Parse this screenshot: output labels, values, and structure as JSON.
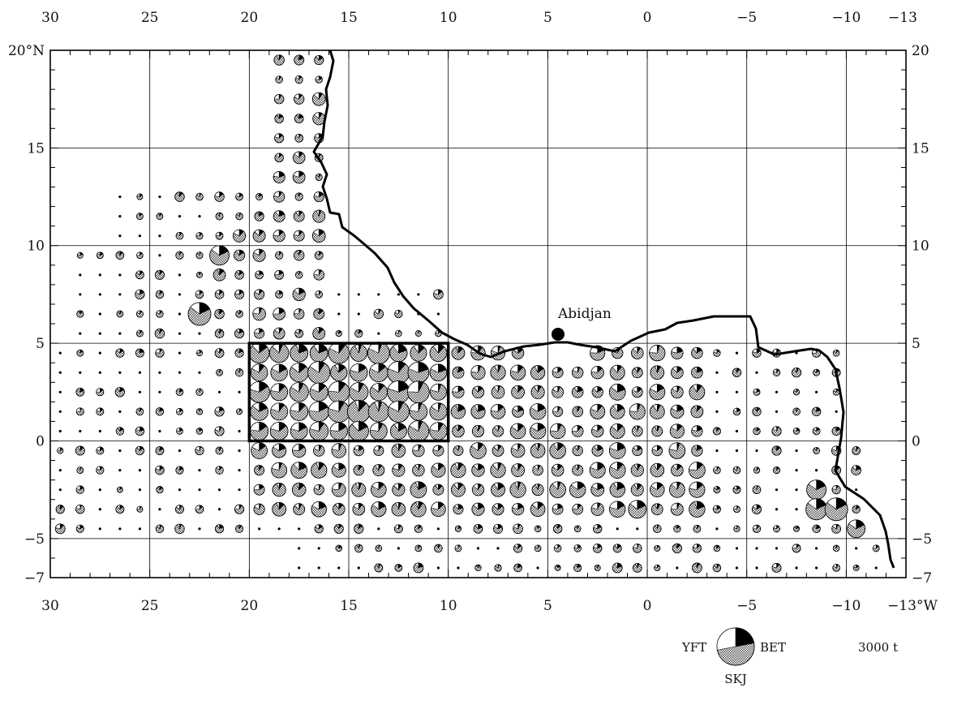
{
  "map": {
    "top_lon_labels": [
      "30",
      "25",
      "20",
      "15",
      "10",
      "5",
      "0",
      "−5",
      "−10",
      "−13"
    ],
    "bottom_lon_labels": [
      "30",
      "25",
      "20",
      "15",
      "10",
      "5",
      "0",
      "−5",
      "−10",
      "−13°W"
    ],
    "left_lat_labels": [
      "20°N",
      "15",
      "10",
      "5",
      "0",
      "−5",
      "−7"
    ],
    "right_lat_labels": [
      "20",
      "15",
      "10",
      "5",
      "0",
      "−5",
      "−7"
    ],
    "port": {
      "name": "Abidjan",
      "lat": 5.3,
      "lon": 4.0
    },
    "highlight_box": {
      "lat_min": 0,
      "lat_max": 5,
      "lon_east_min": 10,
      "lon_east_max": 20
    }
  },
  "legend": {
    "yft": "YFT",
    "bet": "BET",
    "skj": "SKJ",
    "scale": "3000 t"
  }
}
